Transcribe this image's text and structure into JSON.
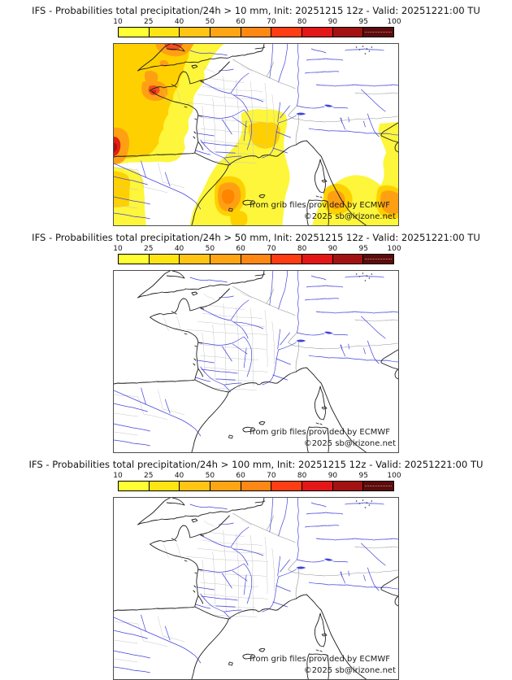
{
  "panels": [
    {
      "threshold": "10 mm",
      "title": "IFS - Probabilities total precipitation/24h > 10 mm, Init: 20251215 12z - Valid: 20251221:00 TU"
    },
    {
      "threshold": "50 mm",
      "title": "IFS - Probabilities total precipitation/24h > 50 mm, Init: 20251215 12z - Valid: 20251221:00 TU"
    },
    {
      "threshold": "100 mm",
      "title": "IFS - Probabilities total precipitation/24h > 100 mm, Init: 20251215 12z - Valid: 20251221:00 TU"
    }
  ],
  "colorbar": {
    "ticks": [
      "10",
      "25",
      "40",
      "50",
      "60",
      "70",
      "80",
      "90",
      "95",
      "100"
    ],
    "tick_values": [
      10,
      25,
      40,
      50,
      60,
      70,
      80,
      90,
      95,
      100
    ],
    "colors": [
      "#ffff33",
      "#ffe414",
      "#ffc414",
      "#ffa514",
      "#ff8714",
      "#ff3d14",
      "#e31717",
      "#a31212",
      "#5e0b0b"
    ],
    "unit": "%"
  },
  "watermark": {
    "line1": "from grib files provided by ECMWF",
    "line2": "©2025 sb@irizone.net"
  },
  "map_palette": {
    "coastline": "#1c1c1c",
    "river": "#4343dd",
    "department_border": "#c6c6c6",
    "country_border": "#949494",
    "shade_yellow": "#fdf63a",
    "shade_gold": "#ffd000",
    "shade_orange": "#ffa013",
    "shade_orange_deep": "#ff8400",
    "shade_redorange": "#f04e1e",
    "shade_red": "#e02014",
    "shade_darkred": "#ad1010"
  },
  "model": "IFS",
  "init": "20251215 12z",
  "valid": "20251221:00 TU"
}
